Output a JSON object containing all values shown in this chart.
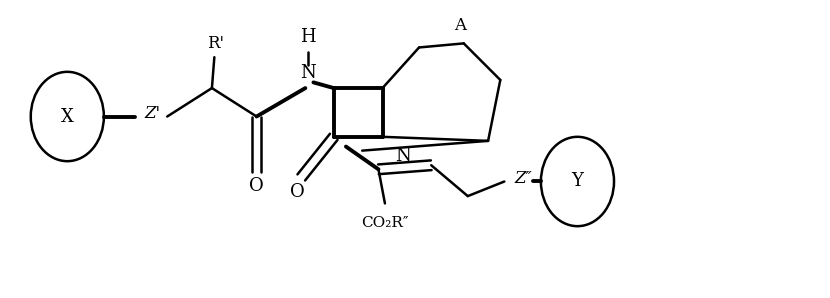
{
  "background_color": "#ffffff",
  "line_color": "#000000",
  "lw": 1.8,
  "blw": 2.8,
  "fs": 12,
  "fig_width": 8.3,
  "fig_height": 2.98,
  "xlim": [
    0,
    10
  ],
  "ylim": [
    0,
    3.6
  ]
}
